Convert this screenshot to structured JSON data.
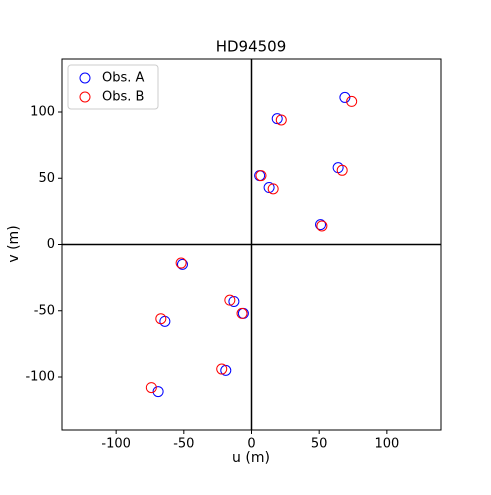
{
  "chart_data": {
    "type": "scatter",
    "title": "HD94509",
    "xlabel": "u (m)",
    "ylabel": "v (m)",
    "series": [
      {
        "name": "Obs. A",
        "color": "#0000ff",
        "x": [
          69,
          19,
          64,
          6,
          13,
          51,
          -51,
          -13,
          -6,
          -64,
          -19,
          -69
        ],
        "y": [
          111,
          95,
          58,
          52,
          43,
          15,
          -15,
          -43,
          -52,
          -58,
          -95,
          -111
        ]
      },
      {
        "name": "Obs. B",
        "color": "#ff0000",
        "x": [
          74,
          22,
          67,
          7,
          16,
          52,
          -52,
          -16,
          -7,
          -67,
          -22,
          -74
        ],
        "y": [
          108,
          94,
          56,
          52,
          42,
          14,
          -14,
          -42,
          -52,
          -56,
          -94,
          -108
        ]
      }
    ],
    "xlim": [
      -140,
      140
    ],
    "ylim": [
      -140,
      140
    ],
    "xticks": [
      -100,
      -50,
      0,
      50,
      100
    ],
    "yticks": [
      -100,
      -50,
      0,
      50,
      100
    ],
    "zero_lines": true,
    "legend": "upper-left",
    "grid": false
  }
}
